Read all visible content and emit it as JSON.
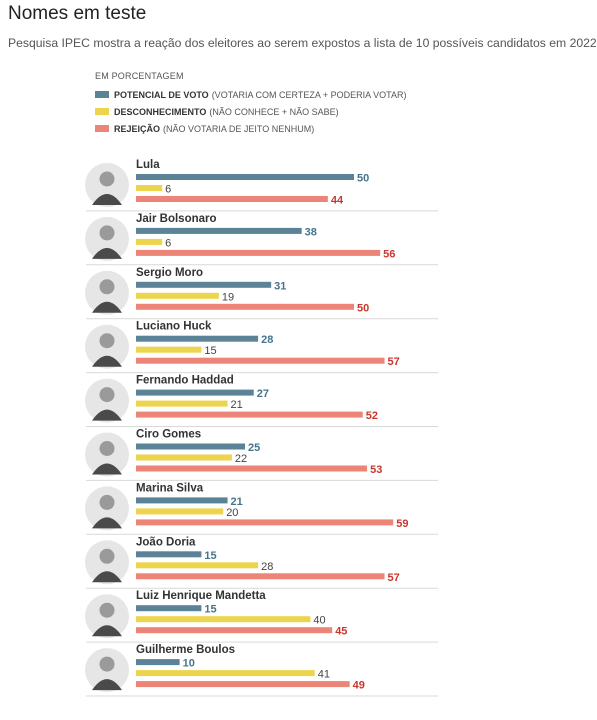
{
  "header": {
    "title": "Nomes em teste",
    "subtitle": "Pesquisa IPEC mostra a reação dos eleitores ao serem expostos a lista de 10 possíveis candidatos em 2022"
  },
  "legend": {
    "unit": "EM PORCENTAGEM",
    "items": [
      {
        "name": "POTENCIAL DE VOTO",
        "desc": "(VOTARIA COM CERTEZA + PODERIA VOTAR)",
        "color": "#5b8397"
      },
      {
        "name": "DESCONHECIMENTO",
        "desc": "(NÃO CONHECE + NÃO SABE)",
        "color": "#ecd54c"
      },
      {
        "name": "REJEIÇÃO",
        "desc": "(NÃO VOTARIA DE JEITO NENHUM)",
        "color": "#ec8577"
      }
    ]
  },
  "chart_data": {
    "type": "bar",
    "orientation": "horizontal",
    "categories": [
      "Lula",
      "Jair Bolsonaro",
      "Sergio Moro",
      "Luciano Huck",
      "Fernando Haddad",
      "Ciro Gomes",
      "Marina Silva",
      "João Doria",
      "Luiz Henrique Mandetta",
      "Guilherme Boulos"
    ],
    "series": [
      {
        "name": "POTENCIAL DE VOTO",
        "color": "#5b8397",
        "label_color": "#45758c",
        "values": [
          50,
          38,
          31,
          28,
          27,
          25,
          21,
          15,
          15,
          10
        ]
      },
      {
        "name": "DESCONHECIMENTO",
        "color": "#ecd54c",
        "label_color": "#444444",
        "values": [
          6,
          6,
          19,
          15,
          21,
          22,
          20,
          28,
          40,
          41
        ]
      },
      {
        "name": "REJEIÇÃO",
        "color": "#ec8577",
        "label_color": "#c8372d",
        "values": [
          44,
          56,
          50,
          57,
          52,
          53,
          59,
          57,
          45,
          49
        ]
      }
    ],
    "xlim": [
      0,
      100
    ],
    "grid": false,
    "legend_position": "top-left"
  }
}
